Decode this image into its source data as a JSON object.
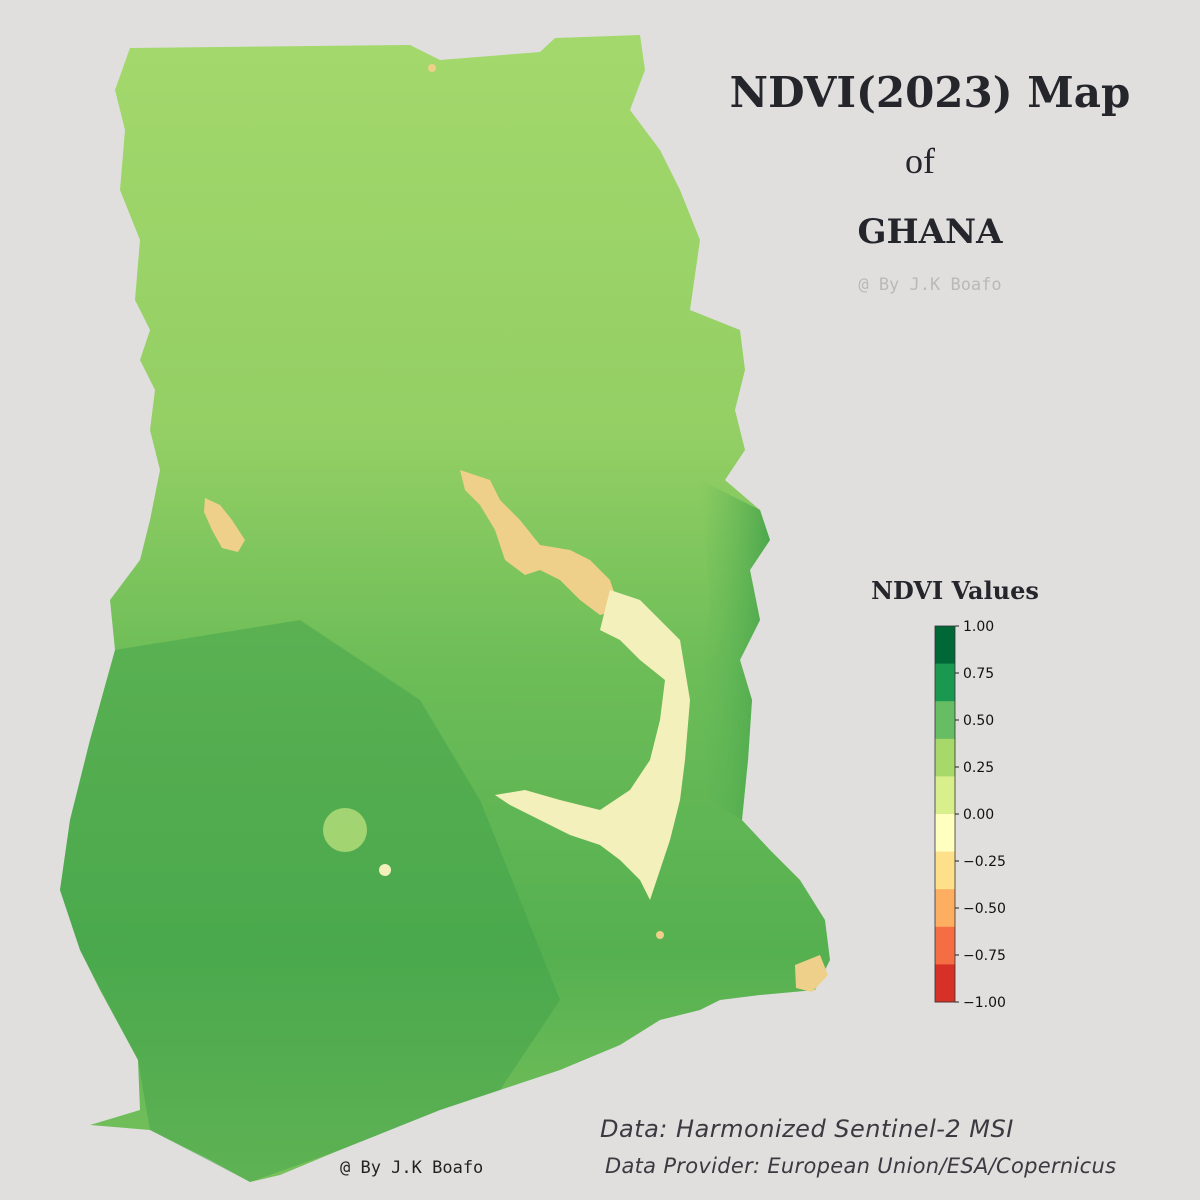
{
  "title": {
    "main": "NDVI(2023) Map",
    "of": "of",
    "country": "GHANA",
    "author": "@ By J.K Boafo"
  },
  "legend": {
    "title": "NDVI Values",
    "ticks": [
      "1.00",
      "0.75",
      "0.50",
      "0.25",
      "0.00",
      "−0.25",
      "−0.50",
      "−0.75",
      "−1.00"
    ],
    "range": [
      -1.0,
      1.0
    ],
    "colors": [
      "#006837",
      "#1a9850",
      "#66bd63",
      "#a6d96a",
      "#d9ef8b",
      "#ffffbf",
      "#fee08b",
      "#fdae61",
      "#f46d43",
      "#d73027"
    ]
  },
  "credits": {
    "data": "Data: Harmonized Sentinel-2 MSI",
    "provider": "Data Provider: European Union/ESA/Copernicus",
    "author_bottom": "@ By J.K Boafo"
  },
  "map_colors": {
    "north": "#9fd66a",
    "south": "#4fad4f",
    "lake": "#efd08a",
    "lake_light": "#f4f0bb"
  }
}
